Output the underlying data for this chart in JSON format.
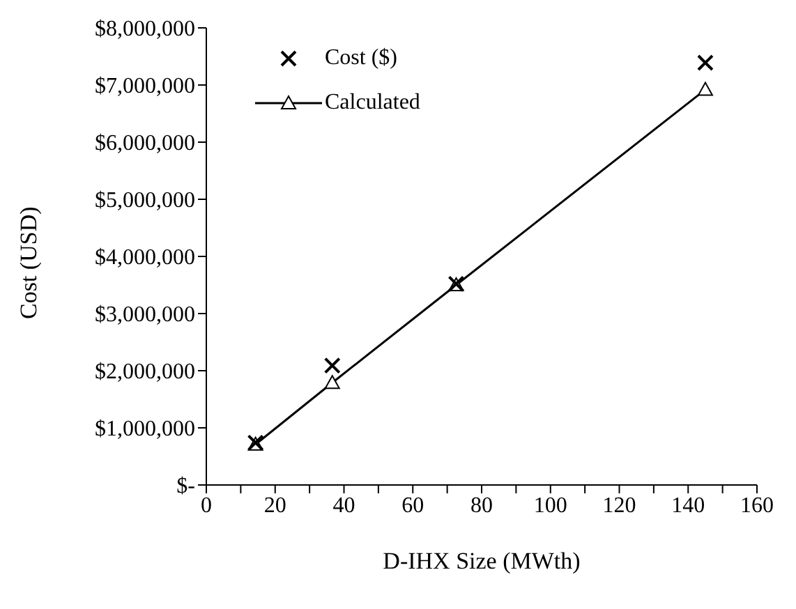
{
  "chart_data": {
    "type": "line",
    "xlabel": "D-IHX Size (MWth)",
    "ylabel": "Cost (USD)",
    "xlim": [
      0,
      160
    ],
    "xticks": [
      0,
      {
        "value": 10,
        "label": null
      },
      20,
      {
        "value": 30,
        "label": null
      },
      40,
      {
        "value": 50,
        "label": null
      },
      60,
      {
        "value": 70,
        "label": null
      },
      80,
      {
        "value": 90,
        "label": null
      },
      100,
      {
        "value": 110,
        "label": null
      },
      120,
      {
        "value": 130,
        "label": null
      },
      140,
      {
        "value": 150,
        "label": null
      },
      160
    ],
    "ylim": [
      0,
      8000000
    ],
    "yticks": [
      {
        "value": 0,
        "label": "$-"
      },
      {
        "value": 1000000,
        "label": "$1,000,000"
      },
      {
        "value": 2000000,
        "label": "$2,000,000"
      },
      {
        "value": 3000000,
        "label": "$3,000,000"
      },
      {
        "value": 4000000,
        "label": "$4,000,000"
      },
      {
        "value": 5000000,
        "label": "$5,000,000"
      },
      {
        "value": 6000000,
        "label": "$6,000,000"
      },
      {
        "value": 7000000,
        "label": "$7,000,000"
      },
      {
        "value": 8000000,
        "label": "$8,000,000"
      }
    ],
    "grid": false,
    "legend": "top left",
    "series": [
      {
        "name": "Cost ($)",
        "type": "scatter",
        "marker": "cross",
        "color": "#000000",
        "x": [
          14.3,
          36.6,
          72.6,
          145
        ],
        "values": [
          740000,
          2090000,
          3520000,
          7390000
        ]
      },
      {
        "name": "Calculated",
        "marker": "triangle",
        "line_style": "solid",
        "color": "#000000",
        "x": [
          14.3,
          36.6,
          72.6,
          145
        ],
        "values": [
          710000,
          1790000,
          3500000,
          6920000
        ]
      }
    ]
  }
}
